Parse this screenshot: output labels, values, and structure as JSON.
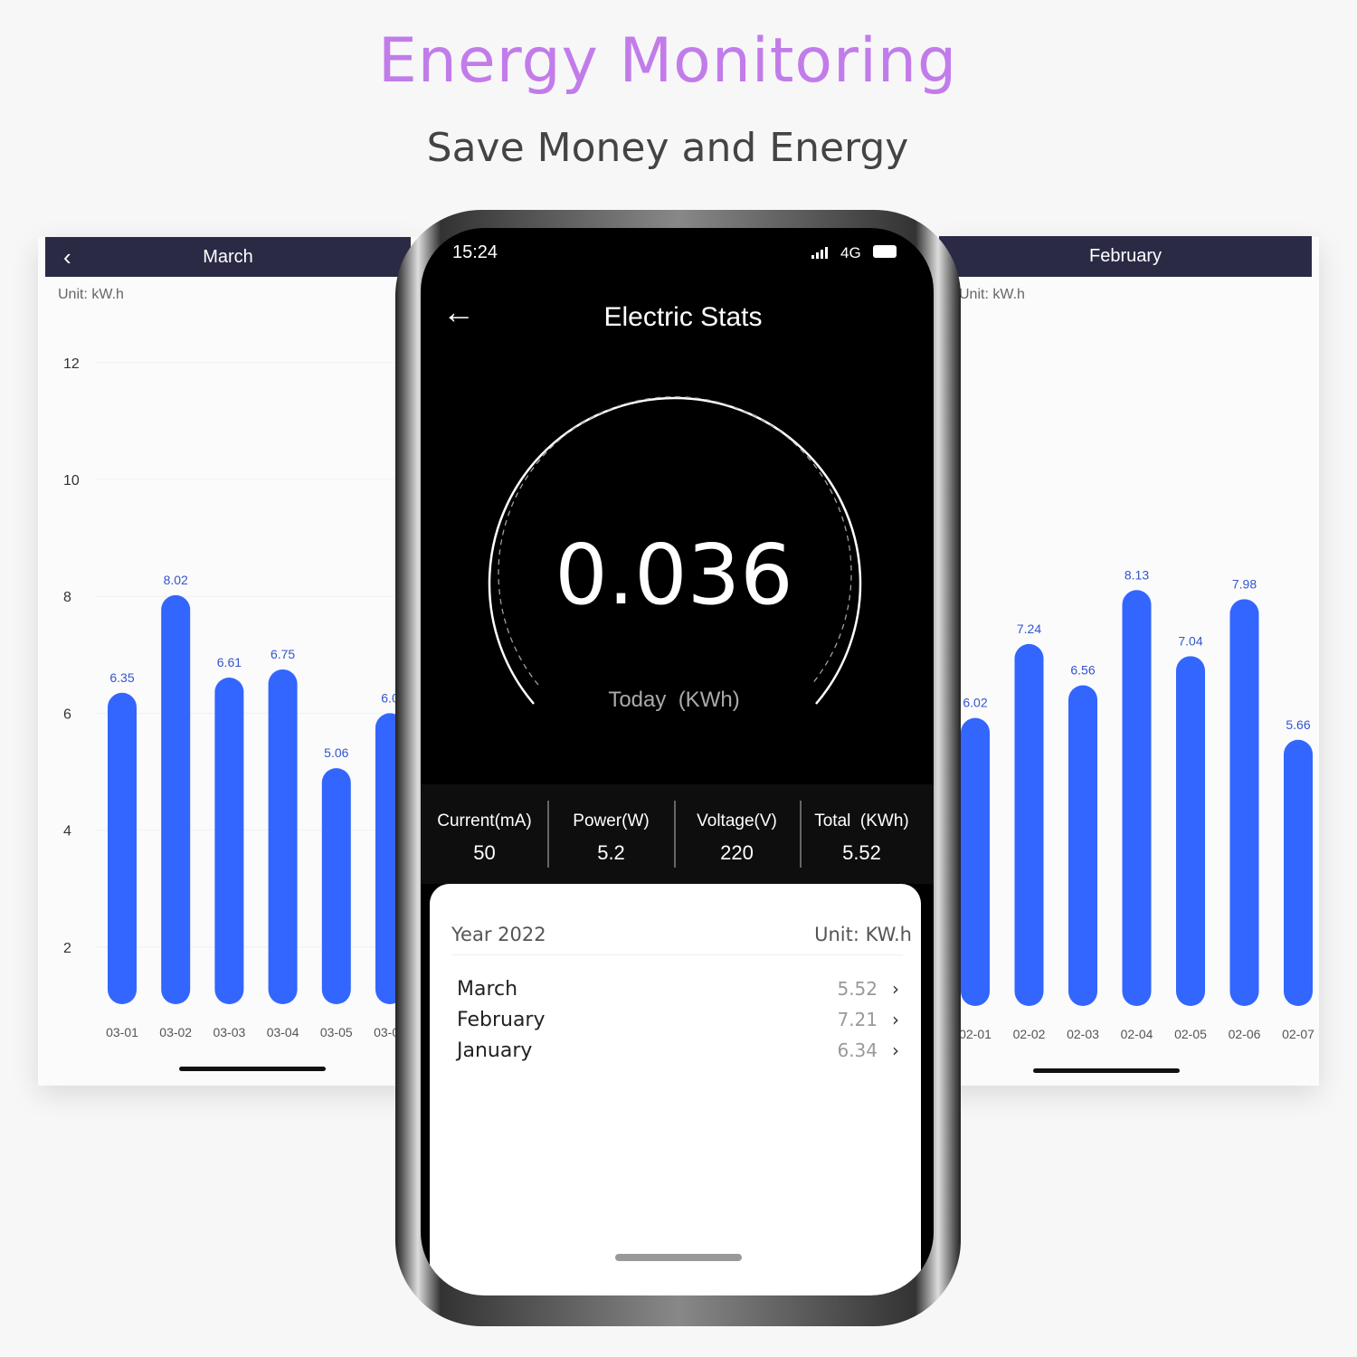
{
  "header": {
    "title": "Energy Monitoring",
    "subtitle": "Save Money and Energy"
  },
  "colors": {
    "title": "#c27cea",
    "bar": "#3366ff",
    "panel_header": "#2b2a45",
    "bar_label": "#3355cc"
  },
  "left_panel": {
    "title": "March",
    "unit": "Unit: kW.h",
    "back_icon": "chevron-left-icon"
  },
  "right_panel": {
    "title": "February",
    "unit": "Unit: kW.h"
  },
  "chart_data": [
    {
      "type": "bar",
      "title": "March",
      "ylabel": "Unit: kW.h",
      "ylim": [
        0,
        12
      ],
      "yticks": [
        "2",
        "4",
        "6",
        "8",
        "10",
        "12"
      ],
      "categories": [
        "03-01",
        "03-02",
        "03-03",
        "03-04",
        "03-05",
        "03-06"
      ],
      "values": [
        6.35,
        8.02,
        6.61,
        6.75,
        5.06,
        6.0
      ],
      "labels": [
        "6.35",
        "8.02",
        "6.61",
        "6.75",
        "5.06",
        "6.0"
      ]
    },
    {
      "type": "bar",
      "title": "February",
      "ylabel": "Unit: kW.h",
      "ylim": [
        0,
        12
      ],
      "categories": [
        "02-01",
        "02-02",
        "02-03",
        "02-04",
        "02-05",
        "02-06",
        "02-07"
      ],
      "values": [
        6.02,
        7.24,
        6.56,
        8.13,
        7.04,
        7.98,
        5.66
      ],
      "labels": [
        "6.02",
        "7.24",
        "6.56",
        "8.13",
        "7.04",
        "7.98",
        "5.66"
      ]
    }
  ],
  "phone": {
    "status": {
      "time": "15:24",
      "network": "4G"
    },
    "title": "Electric Stats",
    "gauge": {
      "value": "0.036",
      "label": "Today  (KWh)"
    },
    "stats": [
      {
        "label": "Current(mA)",
        "value": "50"
      },
      {
        "label": "Power(W)",
        "value": "5.2"
      },
      {
        "label": "Voltage(V)",
        "value": "220"
      },
      {
        "label": "Total  (KWh)",
        "value": "5.52"
      }
    ],
    "card": {
      "year": "Year 2022",
      "unit": "Unit: KW.h",
      "months": [
        {
          "name": "March",
          "value": "5.52"
        },
        {
          "name": "February",
          "value": "7.21"
        },
        {
          "name": "January",
          "value": "6.34"
        }
      ]
    }
  }
}
